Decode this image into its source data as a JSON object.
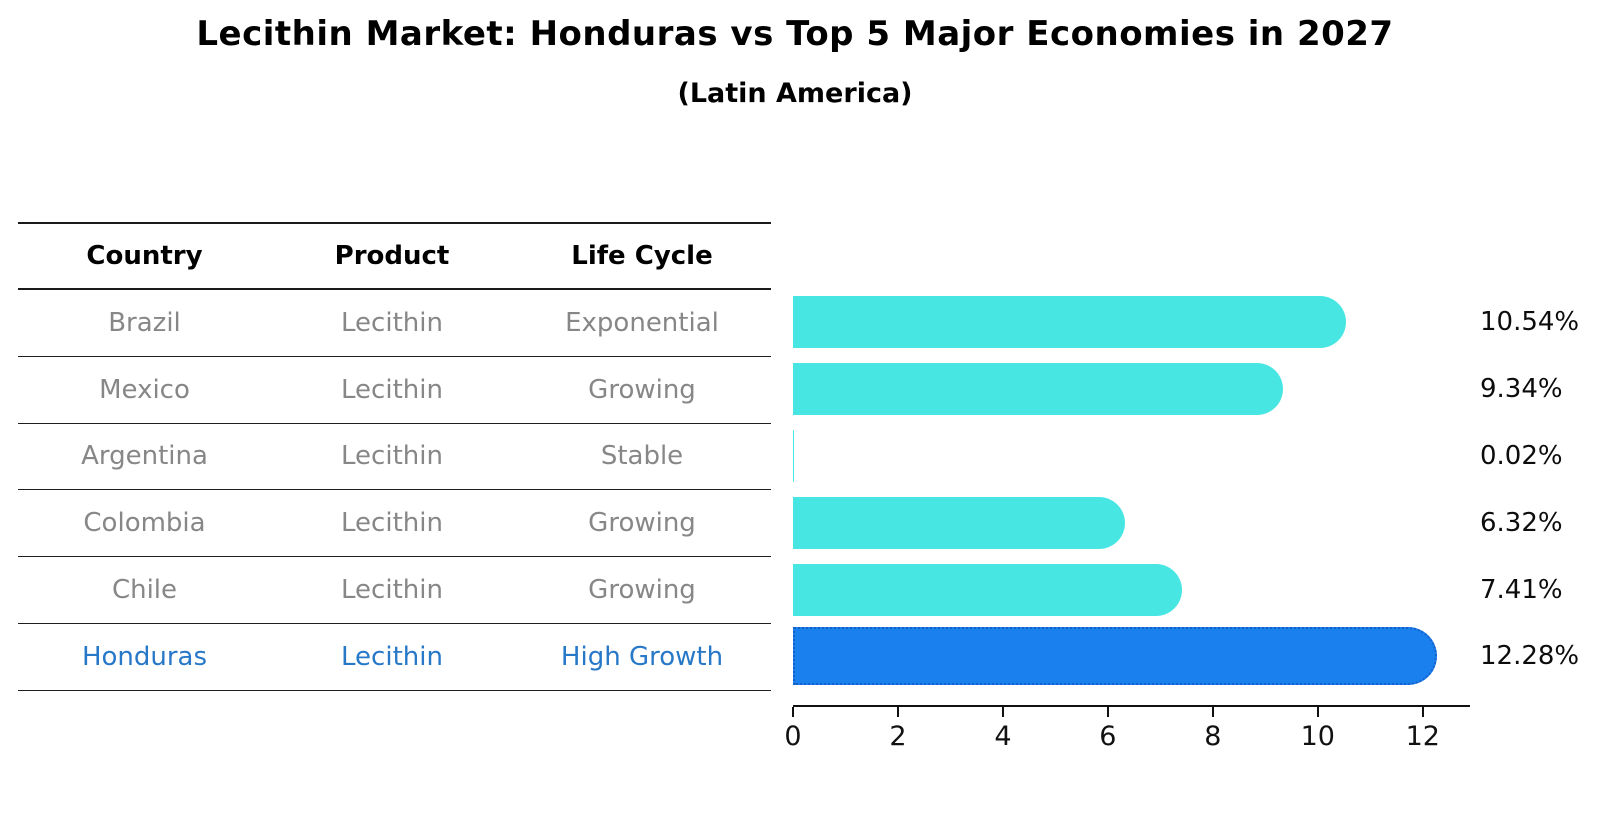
{
  "title": "Lecithin Market: Honduras vs Top 5 Major Economies in 2027",
  "subtitle": "(Latin America)",
  "table": {
    "headers": [
      "Country",
      "Product",
      "Life Cycle"
    ],
    "rows": [
      {
        "country": "Brazil",
        "product": "Lecithin",
        "life_cycle": "Exponential",
        "highlight": false
      },
      {
        "country": "Mexico",
        "product": "Lecithin",
        "life_cycle": "Growing",
        "highlight": false
      },
      {
        "country": "Argentina",
        "product": "Lecithin",
        "life_cycle": "Stable",
        "highlight": false
      },
      {
        "country": "Colombia",
        "product": "Lecithin",
        "life_cycle": "Growing",
        "highlight": false
      },
      {
        "country": "Chile",
        "product": "Lecithin",
        "life_cycle": "Growing",
        "highlight": false
      },
      {
        "country": "Honduras",
        "product": "Lecithin",
        "life_cycle": "High Growth",
        "highlight": true
      }
    ]
  },
  "chart_data": {
    "type": "bar",
    "orientation": "horizontal",
    "title": "Lecithin Market: Honduras vs Top 5 Major Economies in 2027 (Latin America)",
    "categories": [
      "Brazil",
      "Mexico",
      "Argentina",
      "Colombia",
      "Chile",
      "Honduras"
    ],
    "values": [
      10.54,
      9.34,
      0.02,
      6.32,
      7.41,
      12.28
    ],
    "labels": [
      "10.54%",
      "9.34%",
      "0.02%",
      "6.32%",
      "7.41%",
      "12.28%"
    ],
    "xlabel": "",
    "ylabel": "",
    "xlim": [
      0,
      12.9
    ],
    "x_ticks": [
      0,
      2,
      4,
      6,
      8,
      10,
      12
    ],
    "grid": false,
    "legend": false,
    "highlight_index": 5,
    "bar_color": "#48E6E2",
    "highlight_color": "#1A80EE",
    "highlight_border_color": "#1260C8",
    "highlight_text_color": "#2878C8"
  }
}
